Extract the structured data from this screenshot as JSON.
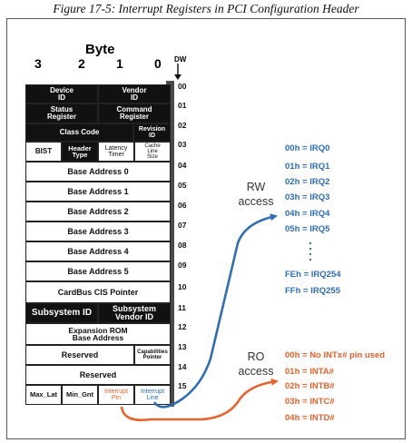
{
  "caption": "Figure 17-5: Interrupt Registers in PCI Configuration Header",
  "header": {
    "byte_title": "Byte",
    "columns": [
      "3",
      "2",
      "1",
      "0"
    ],
    "dw_label": "DW"
  },
  "dw_numbers": [
    "00",
    "01",
    "02",
    "03",
    "04",
    "05",
    "06",
    "07",
    "08",
    "09",
    "10",
    "11",
    "12",
    "13",
    "14",
    "15"
  ],
  "registers": {
    "device_id": "Device\nID",
    "vendor_id": "Vendor\nID",
    "status_register": "Status\nRegister",
    "command_register": "Command\nRegister",
    "class_code": "Class Code",
    "revision_id": "Revision\nID",
    "bist": "BIST",
    "header_type": "Header\nType",
    "latency_timer": "Latency\nTimer",
    "cache_line_size": "Cache\nLine\nSize",
    "base_address_0": "Base Address 0",
    "base_address_1": "Base Address 1",
    "base_address_2": "Base Address 2",
    "base_address_3": "Base Address 3",
    "base_address_4": "Base Address 4",
    "base_address_5": "Base Address 5",
    "cardbus_cis_pointer": "CardBus CIS Pointer",
    "subsystem_id": "Subsystem ID",
    "subsystem_vendor_id": "Subsystem\nVendor ID",
    "expansion_rom": "Expansion ROM\nBase Address",
    "reserved_13": "Reserved",
    "capabilities_pointer": "Capabilities\nPointer",
    "reserved_14": "Reserved",
    "max_lat": "Max_Lat",
    "min_gnt": "Min_Gnt",
    "interrupt_pin": "Interrupt\nPin",
    "interrupt_line": "Interrupt\nLine"
  },
  "rw_access": {
    "label": "RW\naccess",
    "values": [
      "00h = IRQ0",
      "01h = IRQ1",
      "02h = IRQ2",
      "03h = IRQ3",
      "04h = IRQ4",
      "05h = IRQ5"
    ],
    "tail_values": [
      "FEh = IRQ254",
      "FFh = IRQ255"
    ]
  },
  "ro_access": {
    "label": "RO\naccess",
    "values": [
      "00h = No INTx# pin used",
      "01h = INTA#",
      "02h = INTB#",
      "03h = INTC#",
      "04h = INTD#"
    ]
  },
  "colors": {
    "rw_blue": "#2f6db5",
    "ro_orange": "#e8622b",
    "dark_register": "#111111"
  }
}
